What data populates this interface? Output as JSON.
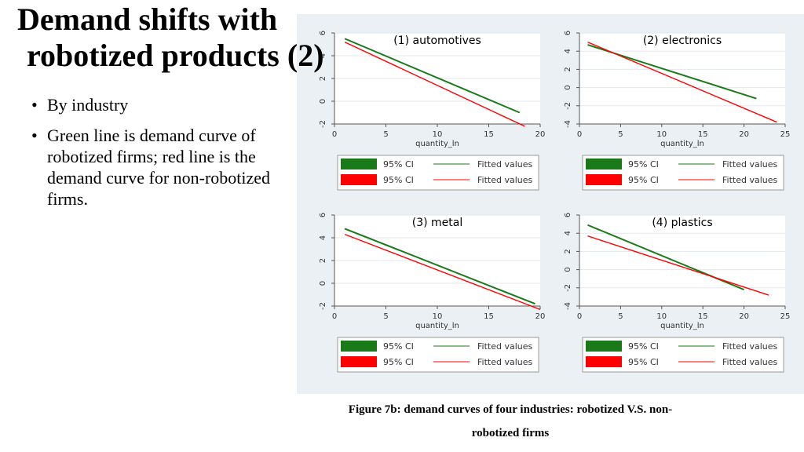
{
  "slide": {
    "title_line1": "Demand shifts with",
    "title_line2": "robotized products (2)",
    "bullets": [
      "By industry",
      "Green line is demand curve of robotized firms; red line is the demand curve for non-robotized firms."
    ],
    "caption_line1": "Figure 7b: demand curves of four industries: robotized V.S. non-",
    "caption_line2": "robotized firms"
  },
  "colors": {
    "robotized": "#1a7a1a",
    "non_robotized": "#ff0000",
    "figure_bg": "#eaf0f3",
    "plot_bg": "#ffffff"
  },
  "legend": {
    "ci_label": "95% CI",
    "fitted_label": "Fitted values"
  },
  "chart_data": [
    {
      "type": "line",
      "title": "(1) automotives",
      "xlabel": "quantity_ln",
      "ylabel": "",
      "xlim": [
        0,
        20
      ],
      "ylim": [
        -2,
        6
      ],
      "xticks": [
        0,
        5,
        10,
        15,
        20
      ],
      "yticks": [
        -2,
        0,
        2,
        4,
        6
      ],
      "grid": true,
      "legend_position": "bottom",
      "series": [
        {
          "x": [
            1,
            18
          ],
          "y": [
            5.5,
            -1.0
          ]
        },
        {
          "x": [
            1,
            18.5
          ],
          "y": [
            5.2,
            -2.2
          ]
        }
      ]
    },
    {
      "type": "line",
      "title": "(2) electronics",
      "xlabel": "quantity_ln",
      "ylabel": "",
      "xlim": [
        0,
        25
      ],
      "ylim": [
        -4,
        6
      ],
      "xticks": [
        0,
        5,
        10,
        15,
        20,
        25
      ],
      "yticks": [
        -4,
        -2,
        0,
        2,
        4,
        6
      ],
      "grid": true,
      "legend_position": "bottom",
      "series": [
        {
          "x": [
            1,
            21.5
          ],
          "y": [
            4.7,
            -1.2
          ]
        },
        {
          "x": [
            1,
            24
          ],
          "y": [
            5.0,
            -3.8
          ]
        }
      ]
    },
    {
      "type": "line",
      "title": "(3) metal",
      "xlabel": "quantity_ln",
      "ylabel": "",
      "xlim": [
        0,
        20
      ],
      "ylim": [
        -2,
        6
      ],
      "xticks": [
        0,
        5,
        10,
        15,
        20
      ],
      "yticks": [
        -2,
        0,
        2,
        4,
        6
      ],
      "grid": true,
      "legend_position": "bottom",
      "series": [
        {
          "x": [
            1,
            19.5
          ],
          "y": [
            4.8,
            -1.8
          ]
        },
        {
          "x": [
            1,
            20
          ],
          "y": [
            4.3,
            -2.3
          ]
        }
      ]
    },
    {
      "type": "line",
      "title": "(4) plastics",
      "xlabel": "quantity_ln",
      "ylabel": "",
      "xlim": [
        0,
        25
      ],
      "ylim": [
        -4,
        6
      ],
      "xticks": [
        0,
        5,
        10,
        15,
        20,
        25
      ],
      "yticks": [
        -4,
        -2,
        0,
        2,
        4,
        6
      ],
      "grid": true,
      "legend_position": "bottom",
      "series": [
        {
          "x": [
            1,
            20
          ],
          "y": [
            4.9,
            -2.2
          ]
        },
        {
          "x": [
            1,
            23
          ],
          "y": [
            3.7,
            -2.8
          ]
        }
      ]
    }
  ]
}
